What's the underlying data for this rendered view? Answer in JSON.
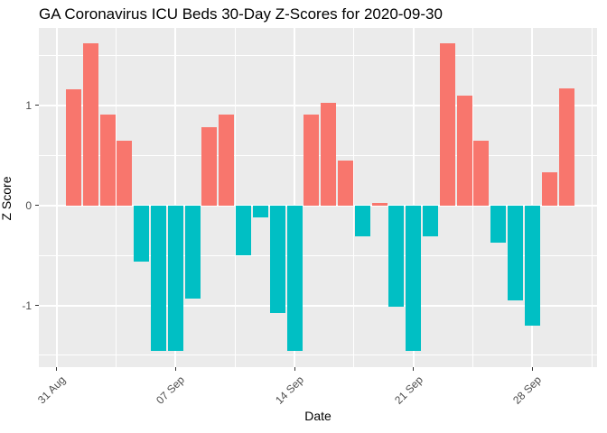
{
  "chart_data": {
    "type": "bar",
    "title": "GA Coronavirus ICU Beds 30-Day Z-Scores for 2020-09-30",
    "xlabel": "Date",
    "ylabel": "Z Score",
    "x_tick_labels": [
      "31 Aug",
      "07 Sep",
      "14 Sep",
      "21 Sep",
      "28 Sep"
    ],
    "x_tick_days": [
      0,
      7,
      14,
      21,
      28
    ],
    "x_minor_days": [
      3.5,
      10.5,
      17.5,
      24.5,
      31.5
    ],
    "y_ticks": [
      -1,
      0,
      1
    ],
    "y_tick_labels": [
      "-1",
      "0",
      "1"
    ],
    "y_minor_ticks": [
      -1.5,
      -0.5,
      0.5,
      1.5
    ],
    "ylim": [
      -1.62,
      1.74
    ],
    "grid": true,
    "legend": "none",
    "dates": [
      "01 Sep",
      "02 Sep",
      "03 Sep",
      "04 Sep",
      "05 Sep",
      "06 Sep",
      "07 Sep",
      "08 Sep",
      "09 Sep",
      "10 Sep",
      "11 Sep",
      "12 Sep",
      "13 Sep",
      "14 Sep",
      "15 Sep",
      "16 Sep",
      "17 Sep",
      "18 Sep",
      "19 Sep",
      "20 Sep",
      "21 Sep",
      "22 Sep",
      "23 Sep",
      "24 Sep",
      "25 Sep",
      "26 Sep",
      "27 Sep",
      "28 Sep",
      "29 Sep",
      "30 Sep"
    ],
    "values": [
      1.16,
      1.62,
      0.91,
      0.65,
      -0.56,
      -1.46,
      -1.46,
      -0.93,
      0.78,
      0.91,
      -0.5,
      -0.12,
      -1.08,
      -1.46,
      0.91,
      1.03,
      0.45,
      -0.31,
      0.02,
      -1.01,
      -1.46,
      -0.31,
      1.62,
      1.1,
      0.65,
      -0.37,
      -0.95,
      -1.2,
      0.33,
      1.17
    ],
    "colors": {
      "positive": "#F8766D",
      "negative": "#00BFC4",
      "panel_bg": "#EBEBEB",
      "grid": "#FFFFFF",
      "axis_text": "#4D4D4D",
      "title_text": "#000000",
      "background": "#FFFFFF"
    }
  }
}
